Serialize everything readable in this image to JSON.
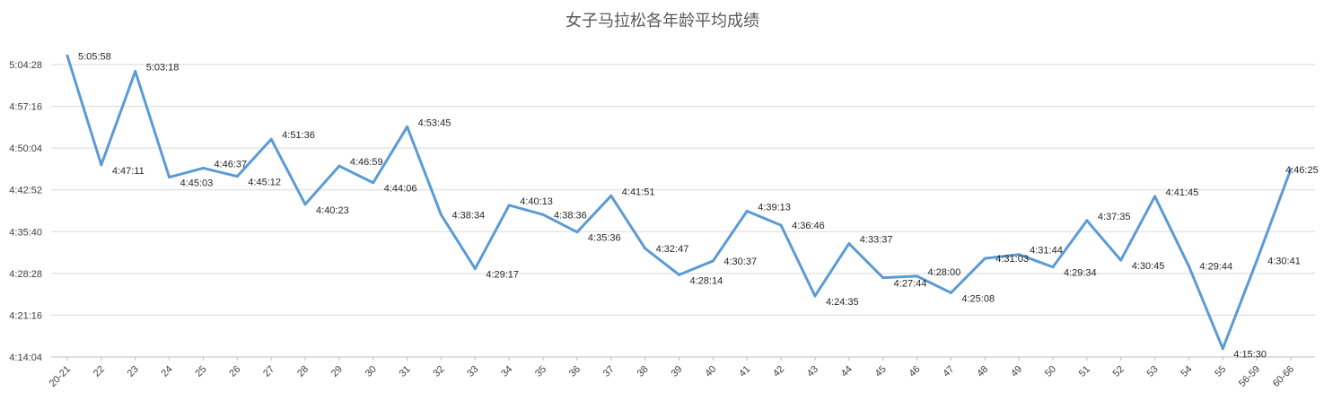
{
  "chart_data": {
    "type": "line",
    "title": "女子马拉松各年龄平均成绩",
    "xlabel": "",
    "ylabel": "",
    "grid": true,
    "line_color": "#5b9bd5",
    "y_ticks": [
      "4:14:04",
      "4:21:16",
      "4:28:28",
      "4:35:40",
      "4:42:52",
      "4:50:04",
      "4:57:16",
      "5:04:28"
    ],
    "ylim": [
      "4:14:04",
      "5:04:28"
    ],
    "categories": [
      "20-21",
      "22",
      "23",
      "24",
      "25",
      "26",
      "27",
      "28",
      "29",
      "30",
      "31",
      "32",
      "33",
      "34",
      "35",
      "36",
      "37",
      "38",
      "39",
      "40",
      "41",
      "42",
      "43",
      "44",
      "45",
      "46",
      "47",
      "48",
      "49",
      "50",
      "51",
      "52",
      "53",
      "54",
      "55",
      "56-59",
      "60-66"
    ],
    "values": [
      "5:05:58",
      "4:47:11",
      "5:03:18",
      "4:45:03",
      "4:46:37",
      "4:45:12",
      "4:51:36",
      "4:40:23",
      "4:46:59",
      "4:44:06",
      "4:53:45",
      "4:38:34",
      "4:29:17",
      "4:40:13",
      "4:38:36",
      "4:35:36",
      "4:41:51",
      "4:32:47",
      "4:28:14",
      "4:30:37",
      "4:39:13",
      "4:36:46",
      "4:24:35",
      "4:33:37",
      "4:27:44",
      "4:28:00",
      "4:25:08",
      "4:31:03",
      "4:31:44",
      "4:29:34",
      "4:37:35",
      "4:30:45",
      "4:41:45",
      "4:29:44",
      "4:15:30",
      "4:30:41",
      "4:46:25"
    ]
  }
}
